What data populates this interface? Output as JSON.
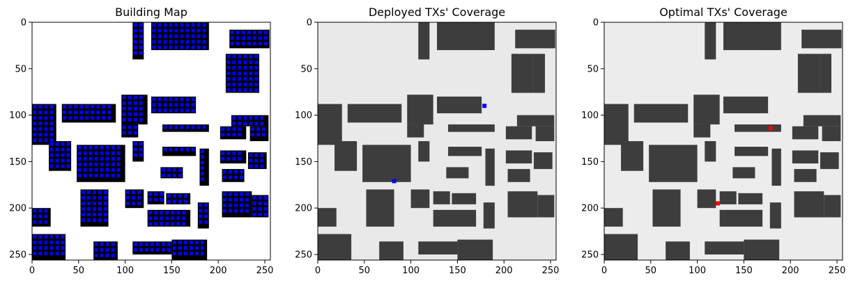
{
  "chart_data": [
    {
      "type": "heatmap",
      "title": "Building Map",
      "xlim": [
        0,
        256
      ],
      "ylim": [
        256,
        0
      ],
      "xticks": [
        0,
        50,
        100,
        150,
        200,
        250
      ],
      "yticks": [
        0,
        50,
        100,
        150,
        200,
        250
      ],
      "grid": false,
      "colormap": {
        "background": "#ffffff",
        "building": "#000000",
        "candidate_tx": "#0000ff"
      },
      "buildings": [
        {
          "x0": 108,
          "x1": 120,
          "y0": 0,
          "y1": 40
        },
        {
          "x0": 128,
          "x1": 177,
          "y0": 0,
          "y1": 30
        },
        {
          "x0": 176,
          "x1": 190,
          "y0": 0,
          "y1": 30
        },
        {
          "x0": 212,
          "x1": 255,
          "y0": 8,
          "y1": 28
        },
        {
          "x0": 208,
          "x1": 232,
          "y0": 34,
          "y1": 76
        },
        {
          "x0": 232,
          "x1": 244,
          "y0": 34,
          "y1": 76
        },
        {
          "x0": 0,
          "x1": 26,
          "y0": 88,
          "y1": 132
        },
        {
          "x0": 18,
          "x1": 42,
          "y0": 128,
          "y1": 160
        },
        {
          "x0": 32,
          "x1": 90,
          "y0": 88,
          "y1": 108
        },
        {
          "x0": 96,
          "x1": 124,
          "y0": 78,
          "y1": 110
        },
        {
          "x0": 128,
          "x1": 176,
          "y0": 80,
          "y1": 98
        },
        {
          "x0": 140,
          "x1": 190,
          "y0": 110,
          "y1": 118
        },
        {
          "x0": 96,
          "x1": 114,
          "y0": 110,
          "y1": 124
        },
        {
          "x0": 214,
          "x1": 254,
          "y0": 100,
          "y1": 112
        },
        {
          "x0": 202,
          "x1": 230,
          "y0": 112,
          "y1": 126
        },
        {
          "x0": 234,
          "x1": 254,
          "y0": 112,
          "y1": 128
        },
        {
          "x0": 48,
          "x1": 100,
          "y0": 132,
          "y1": 172
        },
        {
          "x0": 108,
          "x1": 120,
          "y0": 128,
          "y1": 150
        },
        {
          "x0": 140,
          "x1": 176,
          "y0": 134,
          "y1": 144
        },
        {
          "x0": 180,
          "x1": 190,
          "y0": 136,
          "y1": 176
        },
        {
          "x0": 138,
          "x1": 162,
          "y0": 156,
          "y1": 168
        },
        {
          "x0": 202,
          "x1": 230,
          "y0": 138,
          "y1": 152
        },
        {
          "x0": 232,
          "x1": 252,
          "y0": 140,
          "y1": 158
        },
        {
          "x0": 204,
          "x1": 228,
          "y0": 158,
          "y1": 172
        },
        {
          "x0": 0,
          "x1": 20,
          "y0": 200,
          "y1": 220
        },
        {
          "x0": 0,
          "x1": 36,
          "y0": 228,
          "y1": 256
        },
        {
          "x0": 52,
          "x1": 82,
          "y0": 180,
          "y1": 220
        },
        {
          "x0": 100,
          "x1": 120,
          "y0": 180,
          "y1": 200
        },
        {
          "x0": 124,
          "x1": 142,
          "y0": 182,
          "y1": 196
        },
        {
          "x0": 144,
          "x1": 170,
          "y0": 184,
          "y1": 196
        },
        {
          "x0": 124,
          "x1": 170,
          "y0": 202,
          "y1": 220
        },
        {
          "x0": 178,
          "x1": 190,
          "y0": 194,
          "y1": 222
        },
        {
          "x0": 204,
          "x1": 236,
          "y0": 182,
          "y1": 210
        },
        {
          "x0": 236,
          "x1": 254,
          "y0": 186,
          "y1": 210
        },
        {
          "x0": 66,
          "x1": 92,
          "y0": 236,
          "y1": 256
        },
        {
          "x0": 108,
          "x1": 150,
          "y0": 236,
          "y1": 250
        },
        {
          "x0": 150,
          "x1": 188,
          "y0": 234,
          "y1": 256
        }
      ]
    },
    {
      "type": "heatmap",
      "title": "Deployed TXs' Coverage",
      "xlim": [
        0,
        256
      ],
      "ylim": [
        256,
        0
      ],
      "xticks": [
        0,
        50,
        100,
        150,
        200,
        250
      ],
      "yticks": [
        0,
        50,
        100,
        150,
        200,
        250
      ],
      "grid": false,
      "colormap": {
        "background": "#e9e9e9",
        "building": "#3d3d3d",
        "tx": "#0000ff"
      },
      "tx": [
        {
          "x": 179,
          "y": 90
        },
        {
          "x": 82,
          "y": 171
        }
      ]
    },
    {
      "type": "heatmap",
      "title": "Optimal TXs' Coverage",
      "xlim": [
        0,
        256
      ],
      "ylim": [
        256,
        0
      ],
      "xticks": [
        0,
        50,
        100,
        150,
        200,
        250
      ],
      "yticks": [
        0,
        50,
        100,
        150,
        200,
        250
      ],
      "grid": false,
      "colormap": {
        "background": "#ececec",
        "building": "#3d3d3d",
        "tx": "#ff0000"
      },
      "tx": [
        {
          "x": 179,
          "y": 114
        },
        {
          "x": 122,
          "y": 195
        }
      ]
    }
  ]
}
